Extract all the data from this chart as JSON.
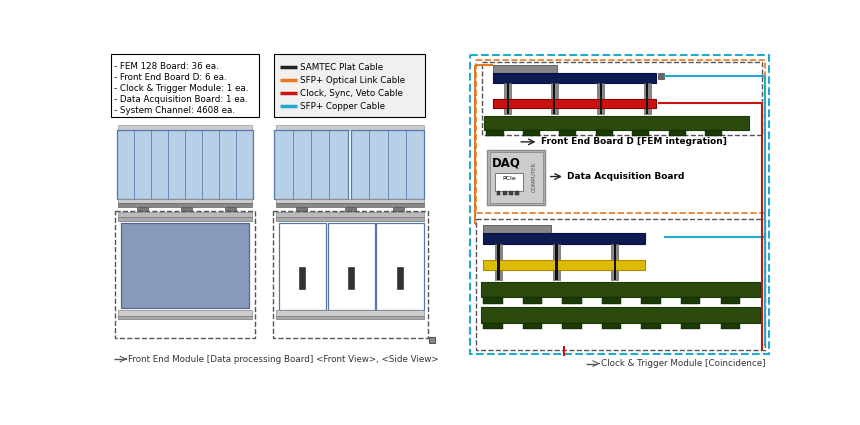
{
  "bg_color": "#ffffff",
  "legend_items": [
    {
      "label": "SAMTEC Plat Cable",
      "color": "#222222"
    },
    {
      "label": "SFP+ Optical Link Cable",
      "color": "#e87820"
    },
    {
      "label": "Clock, Sync, Veto Cable",
      "color": "#cc1111"
    },
    {
      "label": "SFP+ Copper Cable",
      "color": "#22aacc"
    }
  ],
  "info_lines": [
    "- FEM 128 Board: 36 ea.",
    "- Front End Board D: 6 ea.",
    "- Clock & Trigger Module: 1 ea.",
    "- Data Acquisition Board: 1 ea.",
    "- System Channel: 4608 ea."
  ],
  "fem_front_label": "Front End Module [Data processing Board] <Front View>, <Side View>",
  "clock_label": "Clock & Trigger Module [Coincidence]",
  "febd_label": "Front End Board D [FEM integration]",
  "daq_label": "Data Acquisition Board",
  "colors": {
    "lb": "#b8cfe8",
    "bb": "#5577aa",
    "gg": "#999999",
    "dg": "#2d4a0e",
    "db": "#0f1a55",
    "red": "#cc1111",
    "yel": "#ddbb00",
    "lpur": "#8888aa",
    "oran": "#e87820",
    "cyan": "#22aacc",
    "dk": "#333333"
  }
}
